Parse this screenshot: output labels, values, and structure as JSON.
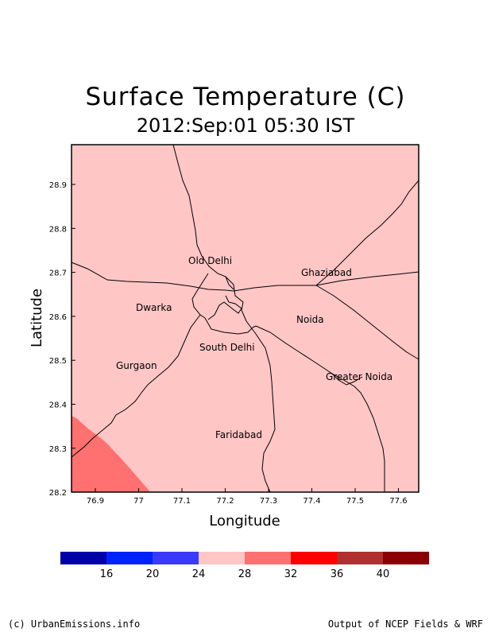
{
  "title": "Surface Temperature (C)",
  "subtitle": "2012:Sep:01 05:30 IST",
  "axes": {
    "xlabel": "Longitude",
    "ylabel": "Latitude",
    "x_ticks": [
      "76.9",
      "77",
      "77.1",
      "77.2",
      "77.3",
      "77.4",
      "77.5",
      "77.6"
    ],
    "y_ticks": [
      "28.9",
      "28.8",
      "28.7",
      "28.6",
      "28.5",
      "28.4",
      "28.3",
      "28.2"
    ]
  },
  "places": [
    {
      "name": "Old Delhi"
    },
    {
      "name": "Ghaziabad"
    },
    {
      "name": "Dwarka"
    },
    {
      "name": "Noida"
    },
    {
      "name": "South Delhi"
    },
    {
      "name": "Gurgaon"
    },
    {
      "name": "Greater Noida"
    },
    {
      "name": "Faridabad"
    }
  ],
  "legend": {
    "colors": [
      "#0000a8",
      "#0022ff",
      "#3a3aff",
      "#ffc6c6",
      "#ff7070",
      "#ff0000",
      "#b03030",
      "#8b0000"
    ],
    "labels": [
      "16",
      "20",
      "24",
      "28",
      "32",
      "36",
      "40"
    ]
  },
  "map_fill": {
    "background_color": "#ffc6c6",
    "corner_color": "#ff7070"
  },
  "footer": {
    "left": "(c) UrbanEmissions.info",
    "right": "Output of NCEP Fields & WRF"
  }
}
